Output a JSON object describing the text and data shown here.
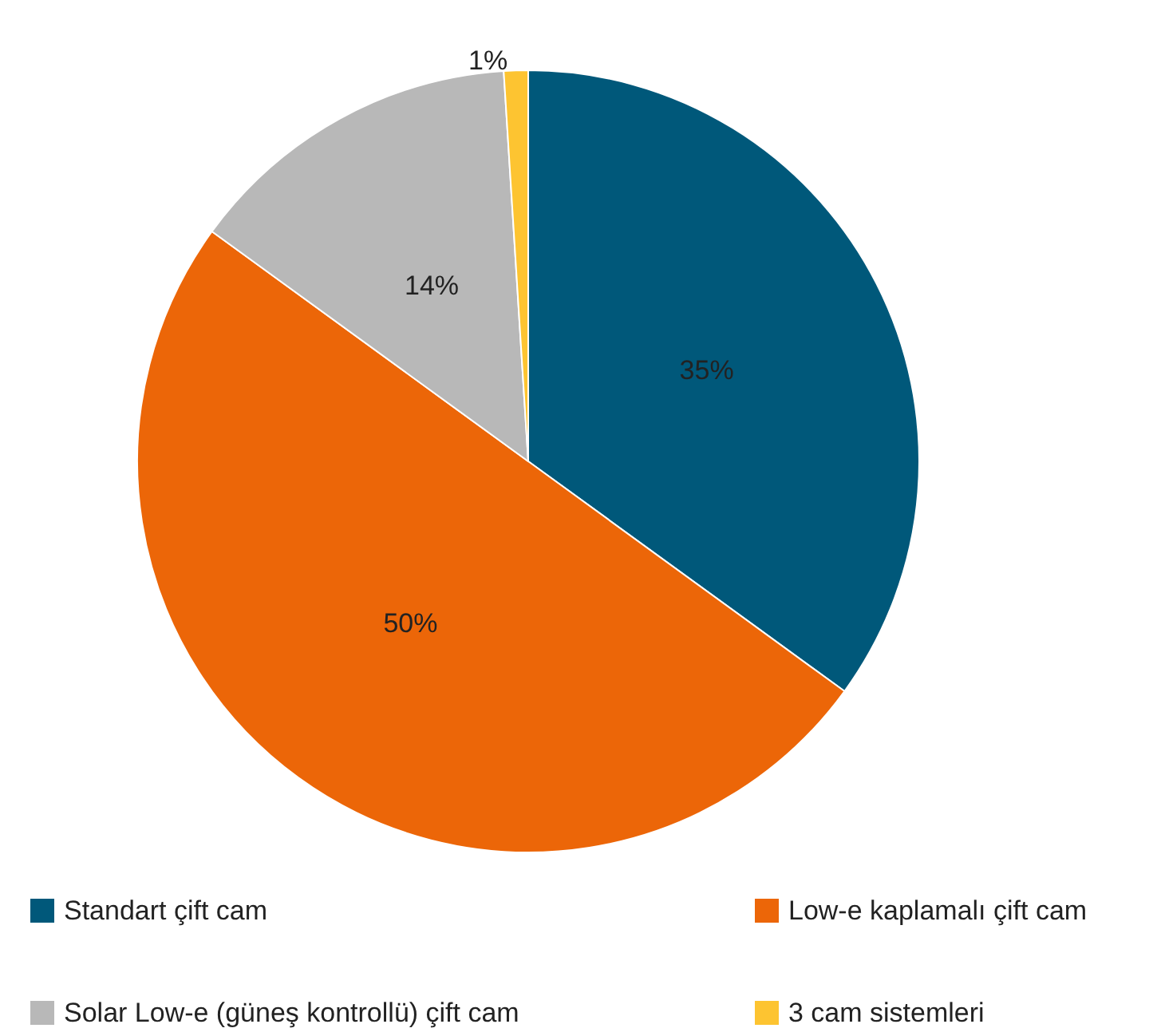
{
  "chart_data": {
    "type": "pie",
    "categories": [
      "Standart çift cam",
      "Low-e kaplamalı çift cam",
      "Solar Low-e (güneş kontrollü) çift cam",
      "3 cam sistemleri"
    ],
    "values": [
      35,
      50,
      14,
      1
    ],
    "colors": [
      "#00587a",
      "#ec6608",
      "#b8b8b8",
      "#fdc431"
    ],
    "value_labels": [
      "35%",
      "50%",
      "14%",
      "1%"
    ],
    "legend": "bottom"
  }
}
